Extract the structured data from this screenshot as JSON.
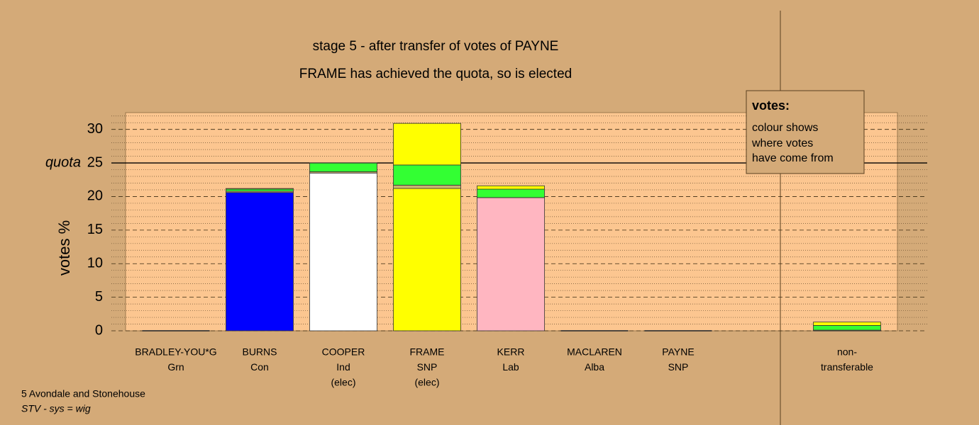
{
  "chart_data": {
    "type": "stacked_bar",
    "title": "stage 5 - after transfer of votes of PAYNE",
    "subtitle": "FRAME has achieved the quota, so is elected",
    "y_label": "votes %",
    "categories": [
      [
        "BRADLEY-YOU*G",
        "Grn"
      ],
      [
        "BURNS",
        "Con"
      ],
      [
        "COOPER",
        "Ind",
        "(elec)"
      ],
      [
        "FRAME",
        "SNP",
        "(elec)"
      ],
      [
        "KERR",
        "Lab"
      ],
      [
        "MACLAREN",
        "Alba"
      ],
      [
        "PAYNE",
        "SNP"
      ],
      [
        "non-",
        "transferable"
      ]
    ],
    "series": [
      {
        "colors": [
          "#33ff33",
          "#0000ff",
          "#ffffff",
          "#ffff00",
          "#ffb6c1",
          "#c8b46e",
          "#ffff00",
          "#c8b46e"
        ],
        "values": [
          0,
          20.6,
          23.5,
          21.2,
          19.85,
          0,
          0,
          0
        ]
      },
      {
        "color": "#c8b46e",
        "values": [
          0,
          0.2,
          0.2,
          0.5,
          0,
          0,
          0,
          0.1
        ]
      },
      {
        "color": "#33ff33",
        "values": [
          0,
          0.3,
          1.3,
          3.0,
          1.25,
          0,
          0,
          0.7
        ]
      },
      {
        "color": "#ffff00",
        "values": [
          0,
          0.1,
          0,
          6.2,
          0.5,
          0,
          0,
          0.5
        ]
      }
    ],
    "ylim": [
      0,
      32.5
    ],
    "yticks": [
      0,
      5,
      10,
      15,
      20,
      25,
      30
    ],
    "minor_yticks": [
      1,
      2,
      3,
      4,
      6,
      7,
      8,
      9,
      11,
      12,
      13,
      14,
      16,
      17,
      18,
      19,
      21,
      22,
      23,
      24,
      26,
      27,
      28,
      29,
      31,
      32
    ],
    "quota": 25,
    "quota_label": "quota",
    "note": {
      "title": "votes:",
      "lines": [
        "colour shows",
        "where votes",
        "have come from"
      ]
    },
    "footer": [
      "5 Avondale and Stonehouse",
      "STV - sys = wig"
    ]
  }
}
